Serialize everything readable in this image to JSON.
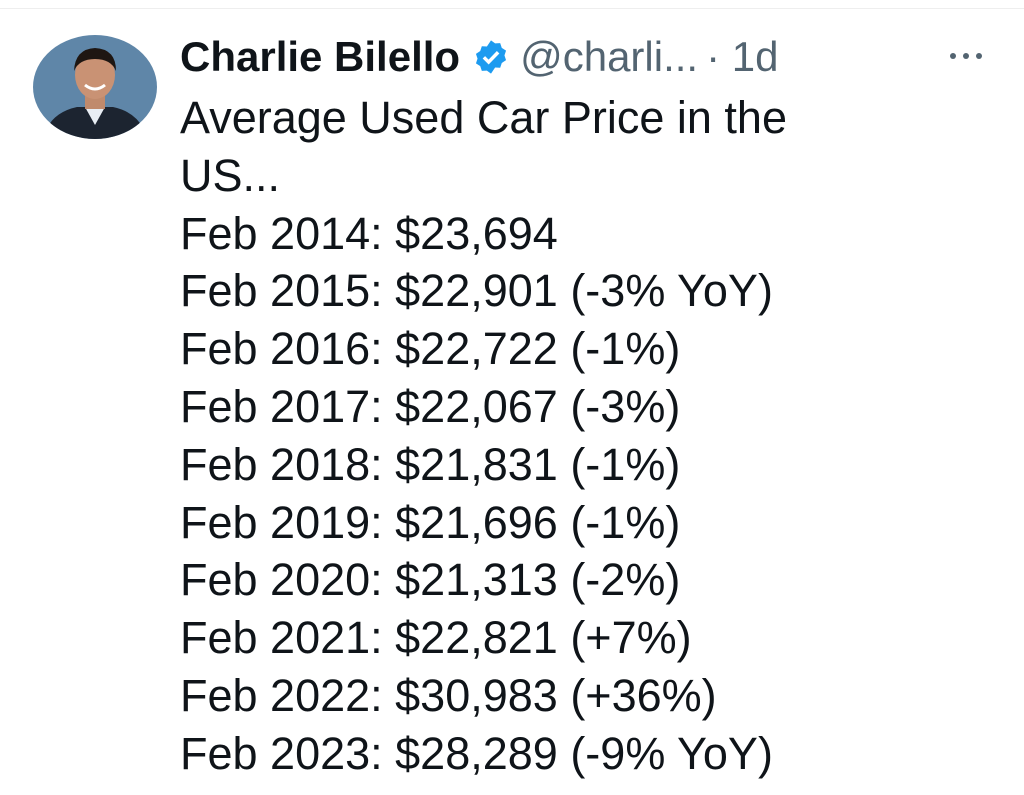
{
  "header": {
    "name": "Charlie Bilello",
    "handle": "@charli...",
    "time": "· 1d"
  },
  "tweet": {
    "lines": [
      "Average Used Car Price in the",
      "US...",
      "Feb 2014: $23,694",
      "Feb 2015: $22,901 (-3% YoY)",
      "Feb 2016: $22,722 (-1%)",
      "Feb 2017: $22,067 (-3%)",
      "Feb 2018: $21,831 (-1%)",
      "Feb 2019: $21,696 (-1%)",
      "Feb 2020: $21,313 (-2%)",
      "Feb 2021: $22,821 (+7%)",
      "Feb 2022: $30,983 (+36%)",
      "Feb 2023: $28,289 (-9% YoY)"
    ]
  }
}
